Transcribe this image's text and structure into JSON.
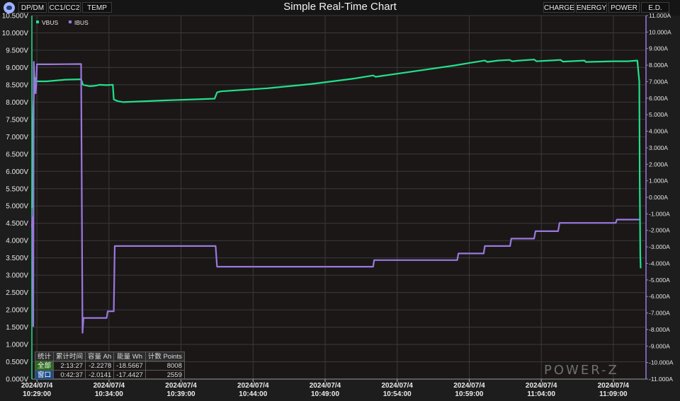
{
  "title": "Simple Real-Time Chart",
  "tabs_left": [
    "DP/DM",
    "CC1/CC2",
    "TEMP"
  ],
  "tabs_right": [
    "CHARGE",
    "ENERGY",
    "POWER",
    "E.D."
  ],
  "watermark": "POWER-Z",
  "stats_table": {
    "headers": [
      "统计",
      "累计时间",
      "容量 Ah",
      "能量 Wh",
      "计数 Points"
    ],
    "rows": [
      {
        "label": "全部",
        "time": "2:13:27",
        "capacity": "-2.2278",
        "energy": "-18.5667",
        "points": "8008"
      },
      {
        "label": "窗口",
        "time": "0:42:37",
        "capacity": "-2.0141",
        "energy": "-17.4427",
        "points": "2559"
      }
    ]
  },
  "colors": {
    "vbus": "#22e08a",
    "ibus": "#9a78e0",
    "background": "#1d1d1d",
    "grid": "#3a3a3a",
    "axis": "#22e08a"
  },
  "chart_data": {
    "type": "line",
    "grid": true,
    "legend_position": "top-left",
    "x_axis": {
      "range": [
        "10:28:39",
        "11:11:16"
      ],
      "tick_labels": [
        [
          "2024/07/4",
          "10:29:00"
        ],
        [
          "2024/07/4",
          "10:34:00"
        ],
        [
          "2024/07/4",
          "10:39:00"
        ],
        [
          "2024/07/4",
          "10:44:00"
        ],
        [
          "2024/07/4",
          "10:49:00"
        ],
        [
          "2024/07/4",
          "10:54:00"
        ],
        [
          "2024/07/4",
          "10:59:00"
        ],
        [
          "2024/07/4",
          "11:04:00"
        ],
        [
          "2024/07/4",
          "11:09:00"
        ]
      ]
    },
    "y_left": {
      "range": [
        0,
        10.5
      ],
      "tick_labels": [
        "0.000V",
        "0.500V",
        "1.000V",
        "1.500V",
        "2.000V",
        "2.500V",
        "3.000V",
        "3.500V",
        "4.000V",
        "4.500V",
        "5.000V",
        "5.500V",
        "6.000V",
        "6.500V",
        "7.000V",
        "7.500V",
        "8.000V",
        "8.500V",
        "9.000V",
        "9.500V",
        "10.000V",
        "10.500V"
      ]
    },
    "y_right": {
      "range": [
        -11,
        11
      ],
      "tick_labels": [
        "-11.000A",
        "-10.000A",
        "-9.000A",
        "-8.000A",
        "-7.000A",
        "-6.000A",
        "-5.000A",
        "-4.000A",
        "-3.000A",
        "-2.000A",
        "-1.000A",
        "0.000A",
        "1.000A",
        "2.000A",
        "3.000A",
        "4.000A",
        "5.000A",
        "6.000A",
        "7.000A",
        "8.000A",
        "9.000A",
        "10.000A",
        "11.000A"
      ]
    },
    "series": [
      {
        "name": "VBUS",
        "axis": "left",
        "points": [
          [
            "10:28:39",
            5.0
          ],
          [
            "10:28:40",
            4.95
          ],
          [
            "10:28:41",
            6.8
          ],
          [
            "10:28:44",
            7.6
          ],
          [
            "10:28:47",
            8.2
          ],
          [
            "10:28:50",
            8.55
          ],
          [
            "10:28:53",
            8.7
          ],
          [
            "10:28:56",
            8.6
          ],
          [
            "10:29:00",
            8.6
          ],
          [
            "10:29:40",
            8.6
          ],
          [
            "10:31:00",
            8.65
          ],
          [
            "10:32:04",
            8.66
          ],
          [
            "10:32:12",
            8.5
          ],
          [
            "10:32:40",
            8.46
          ],
          [
            "10:33:00",
            8.47
          ],
          [
            "10:33:20",
            8.5
          ],
          [
            "10:33:50",
            8.49
          ],
          [
            "10:34:16",
            8.5
          ],
          [
            "10:34:20",
            8.08
          ],
          [
            "10:34:35",
            8.03
          ],
          [
            "10:35:00",
            8.0
          ],
          [
            "10:38:00",
            8.05
          ],
          [
            "10:41:20",
            8.1
          ],
          [
            "10:41:30",
            8.28
          ],
          [
            "10:41:45",
            8.31
          ],
          [
            "10:45:00",
            8.4
          ],
          [
            "10:48:00",
            8.52
          ],
          [
            "10:51:00",
            8.68
          ],
          [
            "10:52:20",
            8.77
          ],
          [
            "10:52:30",
            8.73
          ],
          [
            "10:55:00",
            8.88
          ],
          [
            "10:58:00",
            9.06
          ],
          [
            "10:59:00",
            9.13
          ],
          [
            "11:00:05",
            9.2
          ],
          [
            "11:00:15",
            9.16
          ],
          [
            "11:01:00",
            9.2
          ],
          [
            "11:01:48",
            9.22
          ],
          [
            "11:01:58",
            9.18
          ],
          [
            "11:02:30",
            9.2
          ],
          [
            "11:03:30",
            9.23
          ],
          [
            "11:03:40",
            9.18
          ],
          [
            "11:05:00",
            9.21
          ],
          [
            "11:05:20",
            9.22
          ],
          [
            "11:05:30",
            9.17
          ],
          [
            "11:07:00",
            9.2
          ],
          [
            "11:07:05",
            9.16
          ],
          [
            "11:09:00",
            9.18
          ],
          [
            "11:10:00",
            9.18
          ],
          [
            "11:10:20",
            9.19
          ],
          [
            "11:10:40",
            9.2
          ],
          [
            "11:10:48",
            8.6
          ],
          [
            "11:10:50",
            5.6
          ],
          [
            "11:10:52",
            3.6
          ],
          [
            "11:10:54",
            3.2
          ]
        ]
      },
      {
        "name": "IBUS",
        "axis": "right",
        "points": [
          [
            "10:28:39",
            -1.8
          ],
          [
            "10:28:41",
            -1.2
          ],
          [
            "10:28:42",
            -1.9
          ],
          [
            "10:28:45",
            -7.8
          ],
          [
            "10:28:47",
            8.2
          ],
          [
            "10:28:49",
            7.5
          ],
          [
            "10:28:52",
            6.3
          ],
          [
            "10:28:55",
            6.3
          ],
          [
            "10:28:58",
            7.0
          ],
          [
            "10:29:00",
            8.05
          ],
          [
            "10:30:00",
            8.05
          ],
          [
            "10:31:00",
            8.06
          ],
          [
            "10:32:04",
            8.07
          ],
          [
            "10:32:10",
            -8.2
          ],
          [
            "10:32:14",
            -7.3
          ],
          [
            "10:33:50",
            -7.3
          ],
          [
            "10:33:55",
            -6.9
          ],
          [
            "10:34:20",
            -6.9
          ],
          [
            "10:34:24",
            -2.95
          ],
          [
            "10:36:00",
            -2.95
          ],
          [
            "10:39:00",
            -2.95
          ],
          [
            "10:41:24",
            -2.95
          ],
          [
            "10:41:30",
            -4.2
          ],
          [
            "10:44:00",
            -4.2
          ],
          [
            "10:48:00",
            -4.2
          ],
          [
            "10:52:20",
            -4.2
          ],
          [
            "10:52:24",
            -3.8
          ],
          [
            "10:55:00",
            -3.8
          ],
          [
            "10:58:10",
            -3.8
          ],
          [
            "10:58:15",
            -3.4
          ],
          [
            "11:00:00",
            -3.4
          ],
          [
            "11:00:05",
            -2.95
          ],
          [
            "11:01:50",
            -2.95
          ],
          [
            "11:01:55",
            -2.5
          ],
          [
            "11:03:30",
            -2.5
          ],
          [
            "11:03:36",
            -2.05
          ],
          [
            "11:05:10",
            -2.05
          ],
          [
            "11:05:16",
            -1.55
          ],
          [
            "11:07:00",
            -1.55
          ],
          [
            "11:09:00",
            -1.55
          ],
          [
            "11:09:10",
            -1.55
          ],
          [
            "11:09:15",
            -1.35
          ],
          [
            "11:10:40",
            -1.35
          ],
          [
            "11:10:48",
            -1.35
          ]
        ]
      }
    ]
  }
}
